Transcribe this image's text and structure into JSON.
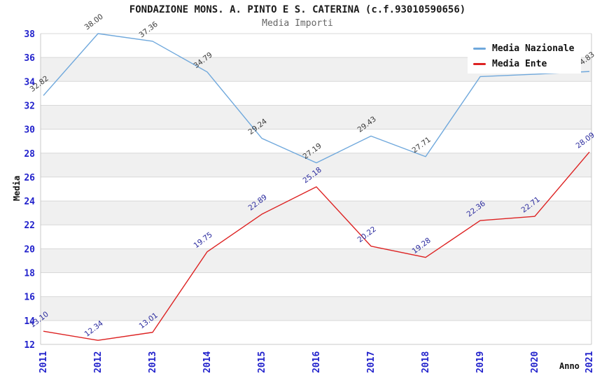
{
  "header": {
    "title": "FONDAZIONE MONS. A. PINTO E S. CATERINA (c.f.93010590656)",
    "subtitle": "Media Importi"
  },
  "axes": {
    "y_label": "Media",
    "x_label": "Anno",
    "y_ticks": [
      38,
      36,
      34,
      32,
      30,
      28,
      26,
      24,
      22,
      20,
      18,
      16,
      14,
      12
    ],
    "x_ticks": [
      "2011",
      "2012",
      "2013",
      "2014",
      "2015",
      "2016",
      "2017",
      "2018",
      "2019",
      "2020",
      "2021"
    ]
  },
  "legend": {
    "items": [
      {
        "label": "Media Nazionale",
        "color": "#6fa8dc"
      },
      {
        "label": "Media Ente",
        "color": "#dd2222"
      }
    ]
  },
  "colors": {
    "tick_text": "#2222cc",
    "grid_band": "#f0f0f0",
    "gridline": "#d8d8d8",
    "plot_border": "#c8c8c8",
    "background": "#ffffff"
  },
  "chart_data": {
    "type": "line",
    "title": "FONDAZIONE MONS. A. PINTO E S. CATERINA (c.f.93010590656)",
    "subtitle": "Media Importi",
    "xlabel": "Anno",
    "ylabel": "Media",
    "ylim": [
      12,
      38
    ],
    "grid": "horizontal-bands-every-2-units",
    "legend_position": "top-right-inside",
    "categories": [
      "2011",
      "2012",
      "2013",
      "2014",
      "2015",
      "2016",
      "2017",
      "2018",
      "2019",
      "2020",
      "2021"
    ],
    "series": [
      {
        "name": "Media Nazionale",
        "color": "#6fa8dc",
        "label_color": "#3c3c3c",
        "values": [
          32.82,
          38.0,
          37.36,
          34.79,
          29.24,
          27.19,
          29.43,
          27.71,
          34.4,
          34.6,
          34.83
        ],
        "point_labels": [
          "32.82",
          "38.00",
          "37.36",
          "34.79",
          "29.24",
          "27.19",
          "29.43",
          "27.71",
          "",
          "",
          "34.83"
        ]
      },
      {
        "name": "Media Ente",
        "color": "#dd2222",
        "label_color": "#2a2a9e",
        "values": [
          13.1,
          12.34,
          13.01,
          19.75,
          22.89,
          25.18,
          20.22,
          19.28,
          22.36,
          22.71,
          28.09
        ],
        "point_labels": [
          "13.10",
          "12.34",
          "13.01",
          "19.75",
          "22.89",
          "25.18",
          "20.22",
          "19.28",
          "22.36",
          "22.71",
          "28.09"
        ]
      }
    ]
  }
}
